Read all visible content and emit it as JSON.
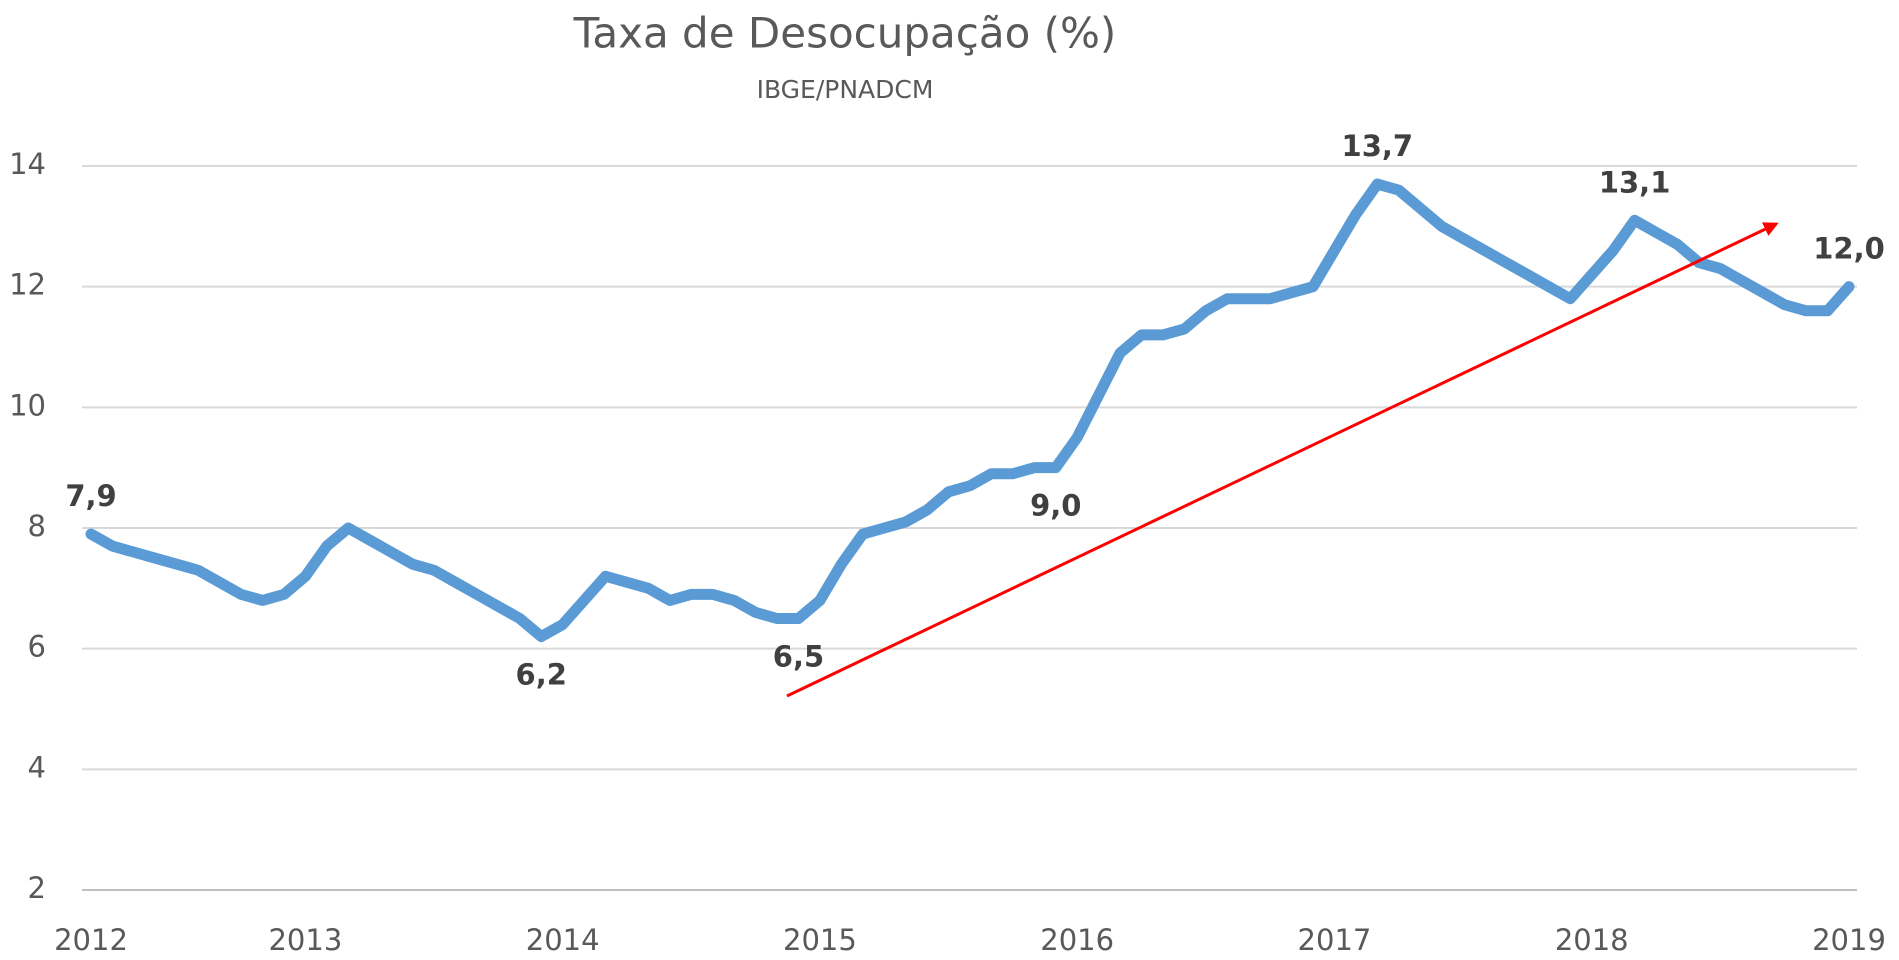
{
  "chart_data": {
    "type": "line",
    "title": "Taxa de Desocupação (%)",
    "subtitle": "IBGE/PNADCM",
    "categories": [
      "2012",
      null,
      null,
      null,
      null,
      null,
      null,
      null,
      null,
      null,
      "2013",
      null,
      null,
      null,
      null,
      null,
      null,
      null,
      null,
      null,
      null,
      null,
      "2014",
      null,
      null,
      null,
      null,
      null,
      null,
      null,
      null,
      null,
      null,
      null,
      "2015",
      null,
      null,
      null,
      null,
      null,
      null,
      null,
      null,
      null,
      null,
      null,
      "2016",
      null,
      null,
      null,
      null,
      null,
      null,
      null,
      null,
      null,
      null,
      null,
      "2017",
      null,
      null,
      null,
      null,
      null,
      null,
      null,
      null,
      null,
      null,
      null,
      "2018",
      null,
      null,
      null,
      null,
      null,
      null,
      null,
      null,
      null,
      null,
      null,
      "2019"
    ],
    "series": [
      {
        "color": "#5b9bd5",
        "values": [
          7.9,
          7.7,
          7.6,
          7.5,
          7.4,
          7.3,
          7.1,
          6.9,
          6.8,
          6.9,
          7.2,
          7.7,
          8.0,
          7.8,
          7.6,
          7.4,
          7.3,
          7.1,
          6.9,
          6.7,
          6.5,
          6.2,
          6.4,
          6.8,
          7.2,
          7.1,
          7.0,
          6.8,
          6.9,
          6.9,
          6.8,
          6.6,
          6.5,
          6.5,
          6.8,
          7.4,
          7.9,
          8.0,
          8.1,
          8.3,
          8.6,
          8.7,
          8.9,
          8.9,
          9.0,
          9.0,
          9.5,
          10.2,
          10.9,
          11.2,
          11.2,
          11.3,
          11.6,
          11.8,
          11.8,
          11.8,
          11.9,
          12.0,
          12.6,
          13.2,
          13.7,
          13.6,
          13.3,
          13.0,
          12.8,
          12.6,
          12.4,
          12.2,
          12.0,
          11.8,
          12.2,
          12.6,
          13.1,
          12.9,
          12.7,
          12.4,
          12.3,
          12.1,
          11.9,
          11.7,
          11.6,
          11.6,
          12.0
        ],
        "value_labels": [
          "7,9",
          null,
          null,
          null,
          null,
          null,
          null,
          null,
          null,
          null,
          null,
          null,
          null,
          null,
          null,
          null,
          null,
          null,
          null,
          null,
          null,
          "6,2",
          null,
          null,
          null,
          null,
          null,
          null,
          null,
          null,
          null,
          null,
          null,
          "6,5",
          null,
          null,
          null,
          null,
          null,
          null,
          null,
          null,
          null,
          null,
          null,
          "9,0",
          null,
          null,
          null,
          null,
          null,
          null,
          null,
          null,
          null,
          null,
          null,
          null,
          null,
          null,
          "13,7",
          null,
          null,
          null,
          null,
          null,
          null,
          null,
          null,
          null,
          null,
          null,
          "13,1",
          null,
          null,
          null,
          null,
          null,
          null,
          null,
          null,
          null,
          "12,0"
        ]
      }
    ],
    "ylim": [
      2,
      14
    ],
    "yticks": [
      2,
      4,
      6,
      8,
      10,
      12,
      14
    ],
    "grid": true
  }
}
